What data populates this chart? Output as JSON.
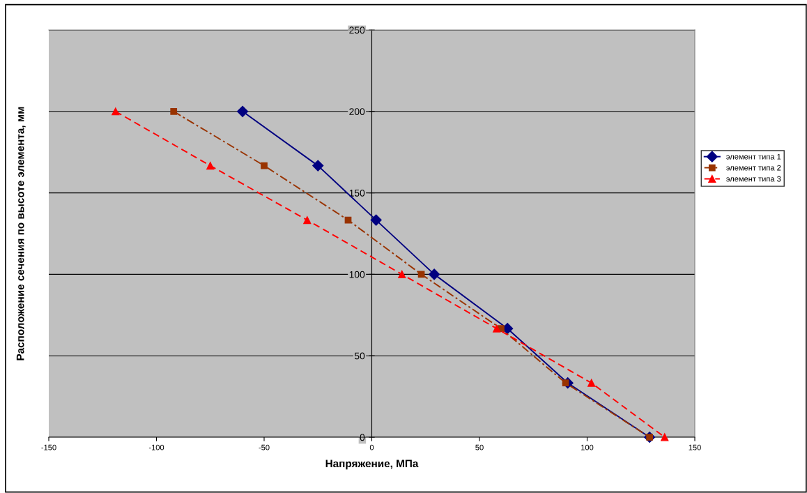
{
  "chart_data": {
    "type": "line",
    "xlabel": "Напряжение, МПа",
    "ylabel": "Расположение сечения по высоте элемента, мм",
    "xlim": [
      -150,
      150
    ],
    "xticks": [
      -150,
      -100,
      -50,
      0,
      50,
      100,
      150
    ],
    "ylim": [
      0,
      250
    ],
    "yticks": [
      0,
      50,
      100,
      150,
      200,
      250
    ],
    "grid": "y",
    "legend": "right",
    "series": [
      {
        "name": "элемент типа 1",
        "color": "#000080",
        "marker": "diamond",
        "line_style": "solid",
        "x": [
          -60,
          -25,
          2,
          29,
          63,
          91,
          129
        ],
        "values": [
          200,
          166.7,
          133.3,
          100,
          66.7,
          33.3,
          0
        ]
      },
      {
        "name": "элемент типа 2",
        "color": "#993300",
        "marker": "square",
        "line_style": "dashdot",
        "x": [
          -92,
          -50,
          -11,
          23,
          60,
          90,
          129
        ],
        "values": [
          200,
          166.7,
          133.3,
          100,
          66.7,
          33.3,
          0
        ]
      },
      {
        "name": "элемент типа 3",
        "color": "#ff0000",
        "marker": "triangle",
        "line_style": "dashed",
        "x": [
          -119,
          -75,
          -30,
          14,
          58,
          102,
          136
        ],
        "values": [
          200,
          166.7,
          133.3,
          100,
          66.7,
          33.3,
          0
        ]
      }
    ]
  }
}
